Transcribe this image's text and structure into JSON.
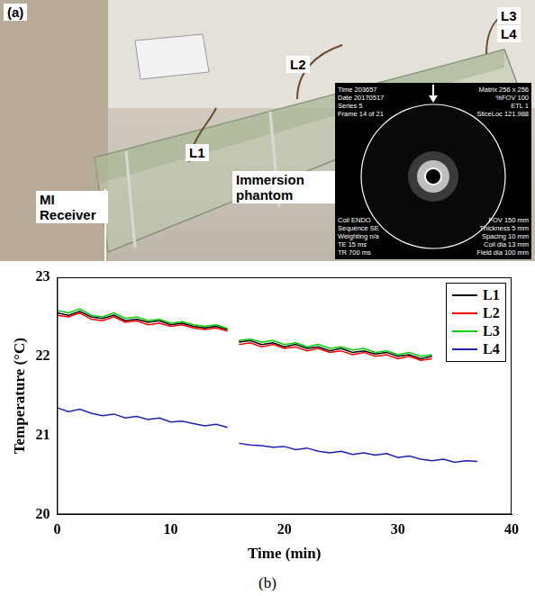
{
  "photo": {
    "panel_label": "(a)",
    "receiver": "MI Receiver",
    "phantom": "Immersion phantom",
    "probes": [
      "L1",
      "L2",
      "L3",
      "L4"
    ],
    "inset": {
      "top_left": [
        "Time 203657",
        "Date 20170517",
        "Series 5",
        "Frame 14 of 21"
      ],
      "top_right": [
        "Matrix 256 x 256",
        "%FOV 100",
        "ETL 1",
        "SliceLoc 121.988"
      ],
      "bottom_left": [
        "Coil ENDO",
        "Sequence SE",
        "Weighting n/a",
        "TE 15 ms",
        "TR 700 ms"
      ],
      "bottom_right": [
        "FOV 150 mm",
        "Thickness 5 mm",
        "Spacing 10 mm",
        "Coil dia 13 mm",
        "Field dia 100 mm"
      ]
    }
  },
  "chart_data": {
    "type": "line",
    "panel_label": "(b)",
    "x_label": "Time (min)",
    "y_label": "Temperature (°C)",
    "x": [
      0,
      1,
      2,
      3,
      4,
      5,
      6,
      7,
      8,
      9,
      10,
      11,
      12,
      13,
      14,
      15,
      15.5,
      16,
      17,
      18,
      19,
      20,
      21,
      22,
      23,
      24,
      25,
      26,
      27,
      28,
      29,
      30,
      31,
      32,
      33,
      34,
      35,
      36,
      37
    ],
    "series": [
      {
        "name": "L1",
        "color": "#000000",
        "values": [
          22.55,
          22.52,
          22.57,
          22.5,
          22.48,
          22.52,
          22.45,
          22.47,
          22.43,
          22.45,
          22.4,
          22.42,
          22.38,
          22.36,
          22.38,
          22.34,
          null,
          22.18,
          22.2,
          22.15,
          22.17,
          22.12,
          22.15,
          22.1,
          22.12,
          22.07,
          22.1,
          22.05,
          22.07,
          22.03,
          22.05,
          22.0,
          22.02,
          21.97,
          22.0,
          null,
          null,
          null,
          null
        ]
      },
      {
        "name": "L2",
        "color": "#ff0000",
        "values": [
          22.52,
          22.5,
          22.55,
          22.47,
          22.45,
          22.5,
          22.43,
          22.45,
          22.4,
          22.42,
          22.38,
          22.4,
          22.36,
          22.34,
          22.36,
          22.32,
          null,
          22.15,
          22.17,
          22.12,
          22.15,
          22.1,
          22.12,
          22.07,
          22.1,
          22.05,
          22.07,
          22.02,
          22.05,
          22.0,
          22.02,
          21.97,
          22.0,
          21.95,
          21.97,
          null,
          null,
          null,
          null
        ]
      },
      {
        "name": "L3",
        "color": "#00cc00",
        "values": [
          22.58,
          22.55,
          22.6,
          22.52,
          22.5,
          22.55,
          22.48,
          22.5,
          22.45,
          22.47,
          22.42,
          22.44,
          22.4,
          22.38,
          22.4,
          22.35,
          null,
          22.2,
          22.22,
          22.18,
          22.2,
          22.15,
          22.17,
          22.12,
          22.15,
          22.1,
          22.12,
          22.08,
          22.1,
          22.05,
          22.07,
          22.02,
          22.05,
          22.0,
          22.02,
          null,
          null,
          null,
          null
        ]
      },
      {
        "name": "L4",
        "color": "#1f1fb4",
        "values": [
          21.35,
          21.3,
          21.33,
          21.28,
          21.25,
          21.27,
          21.22,
          21.24,
          21.2,
          21.22,
          21.17,
          21.18,
          21.15,
          21.12,
          21.14,
          21.1,
          null,
          20.9,
          20.88,
          20.87,
          20.85,
          20.86,
          20.82,
          20.84,
          20.8,
          20.78,
          20.8,
          20.76,
          20.78,
          20.75,
          20.77,
          20.72,
          20.74,
          20.7,
          20.68,
          20.7,
          20.66,
          20.68,
          20.67
        ]
      }
    ],
    "xlim": [
      0,
      40
    ],
    "xticks": [
      0,
      10,
      20,
      30,
      40
    ],
    "ylim": [
      20,
      23
    ],
    "yticks": [
      20,
      21,
      22,
      23
    ],
    "grid": false,
    "legend": "top-right"
  }
}
